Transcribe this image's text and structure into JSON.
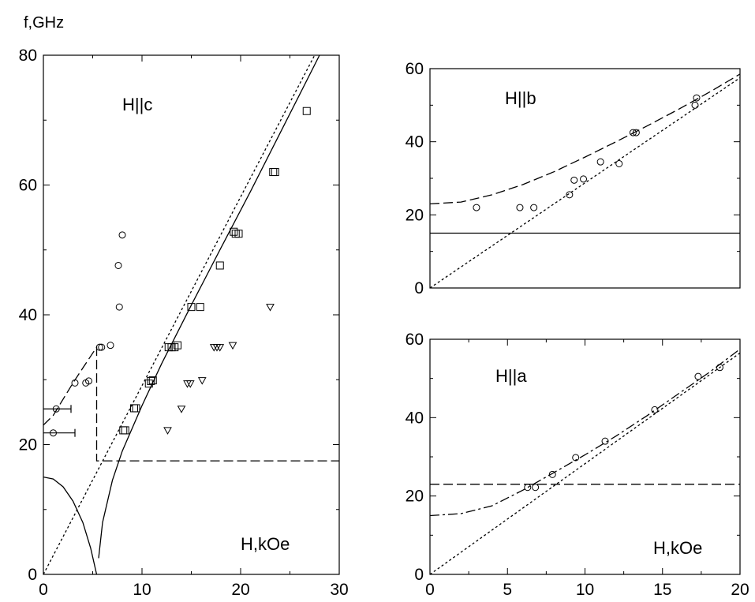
{
  "chart_data": [
    {
      "type": "scatter",
      "ylabel": "f,GHz",
      "xlabel": "H,kOe",
      "annotation": "H||c",
      "xlim": [
        0,
        30
      ],
      "ylim": [
        0,
        80
      ],
      "xticks": [
        0,
        10,
        20,
        30
      ],
      "yticks": [
        0,
        20,
        40,
        60,
        80
      ],
      "series": [
        {
          "marker": "circle",
          "points": [
            [
              1.3,
              25.5
            ],
            [
              1.0,
              21.8
            ],
            [
              3.2,
              29.5
            ],
            [
              4.3,
              29.5
            ],
            [
              4.6,
              29.8
            ],
            [
              5.7,
              35.0
            ],
            [
              5.9,
              35.0
            ],
            [
              6.8,
              35.3
            ],
            [
              7.6,
              47.6
            ],
            [
              7.7,
              41.2
            ],
            [
              8.0,
              52.3
            ]
          ]
        },
        {
          "marker": "square",
          "points": [
            [
              8.1,
              22.2
            ],
            [
              8.3,
              22.2
            ],
            [
              9.2,
              25.6
            ],
            [
              9.4,
              25.6
            ],
            [
              10.7,
              29.4
            ],
            [
              10.9,
              29.8
            ],
            [
              11.1,
              29.9
            ],
            [
              12.7,
              35.0
            ],
            [
              13.0,
              35.0
            ],
            [
              13.3,
              35.0
            ],
            [
              13.6,
              35.3
            ],
            [
              15.0,
              41.2
            ],
            [
              15.9,
              41.2
            ],
            [
              17.9,
              47.6
            ],
            [
              19.3,
              52.8
            ],
            [
              19.5,
              52.5
            ],
            [
              19.8,
              52.5
            ],
            [
              23.3,
              62.0
            ],
            [
              23.5,
              62.0
            ],
            [
              26.7,
              71.4
            ]
          ]
        },
        {
          "marker": "triangle-down",
          "points": [
            [
              12.6,
              22.2
            ],
            [
              14.0,
              25.5
            ],
            [
              14.6,
              29.4
            ],
            [
              14.9,
              29.4
            ],
            [
              16.1,
              29.9
            ],
            [
              17.3,
              35.0
            ],
            [
              17.6,
              35.0
            ],
            [
              17.9,
              35.0
            ],
            [
              19.2,
              35.3
            ],
            [
              23.0,
              41.2
            ]
          ]
        }
      ],
      "curves": [
        {
          "style": "solid",
          "points": [
            [
              0,
              15.0
            ],
            [
              1,
              14.7
            ],
            [
              2,
              13.5
            ],
            [
              3,
              11.3
            ],
            [
              4,
              8.0
            ],
            [
              4.8,
              4.0
            ],
            [
              5.4,
              0
            ]
          ]
        },
        {
          "style": "solid",
          "points": [
            [
              5.6,
              2.5
            ],
            [
              6.0,
              8.0
            ],
            [
              7.0,
              14.5
            ],
            [
              8.0,
              19.0
            ],
            [
              10.0,
              26.0
            ],
            [
              12.0,
              32.5
            ],
            [
              15.0,
              41.5
            ],
            [
              18.0,
              50.3
            ],
            [
              21.0,
              59.0
            ],
            [
              24.0,
              68.0
            ],
            [
              26.0,
              74.0
            ],
            [
              28.0,
              80.0
            ]
          ]
        },
        {
          "style": "dotted",
          "points": [
            [
              0,
              0
            ],
            [
              27.5,
              80.0
            ]
          ]
        },
        {
          "style": "dashed",
          "points": [
            [
              0,
              23.0
            ],
            [
              1,
              24.5
            ],
            [
              2,
              27.0
            ],
            [
              3,
              29.5
            ],
            [
              4,
              31.8
            ],
            [
              5.4,
              35.0
            ],
            [
              5.4,
              17.5
            ],
            [
              30,
              17.5
            ]
          ]
        }
      ],
      "error_bars": [
        {
          "y": 25.5,
          "x_from": 0,
          "x_to": 2.8
        },
        {
          "y": 21.8,
          "x_from": 0,
          "x_to": 3.2
        }
      ]
    },
    {
      "type": "scatter",
      "annotation": "H||b",
      "xlim": [
        0,
        20
      ],
      "ylim": [
        0,
        60
      ],
      "yticks": [
        0,
        20,
        40,
        60
      ],
      "series": [
        {
          "marker": "circle",
          "points": [
            [
              3.0,
              22.0
            ],
            [
              5.8,
              22.0
            ],
            [
              6.7,
              22.0
            ],
            [
              9.0,
              25.5
            ],
            [
              9.3,
              29.5
            ],
            [
              9.9,
              29.8
            ],
            [
              11.0,
              34.5
            ],
            [
              12.2,
              34.0
            ],
            [
              13.1,
              42.5
            ],
            [
              13.3,
              42.5
            ],
            [
              17.1,
              50.0
            ],
            [
              17.2,
              52.0
            ]
          ]
        }
      ],
      "curves": [
        {
          "style": "solid",
          "points": [
            [
              0,
              15.0
            ],
            [
              20,
              15.0
            ]
          ]
        },
        {
          "style": "dotted",
          "points": [
            [
              0,
              0
            ],
            [
              20,
              57.5
            ]
          ]
        },
        {
          "style": "dashed",
          "points": [
            [
              0,
              23.0
            ],
            [
              2,
              23.5
            ],
            [
              4,
              25.5
            ],
            [
              6,
              28.3
            ],
            [
              8,
              31.8
            ],
            [
              10,
              35.8
            ],
            [
              12,
              40.0
            ],
            [
              14,
              44.3
            ],
            [
              16,
              48.8
            ],
            [
              18,
              53.5
            ],
            [
              20,
              58.5
            ]
          ]
        }
      ]
    },
    {
      "type": "scatter",
      "annotation": "H||a",
      "xlabel": "H,kOe",
      "xlim": [
        0,
        20
      ],
      "ylim": [
        0,
        60
      ],
      "xticks": [
        0,
        5,
        10,
        15,
        20
      ],
      "yticks": [
        0,
        20,
        40,
        60
      ],
      "series": [
        {
          "marker": "circle",
          "points": [
            [
              6.3,
              22.2
            ],
            [
              6.8,
              22.2
            ],
            [
              7.9,
              25.5
            ],
            [
              9.4,
              29.8
            ],
            [
              11.3,
              34.0
            ],
            [
              14.5,
              42.0
            ],
            [
              17.3,
              50.5
            ],
            [
              18.7,
              52.8
            ]
          ]
        }
      ],
      "curves": [
        {
          "style": "dashed",
          "points": [
            [
              0,
              23.0
            ],
            [
              20,
              23.0
            ]
          ]
        },
        {
          "style": "dotted",
          "points": [
            [
              0,
              0
            ],
            [
              20,
              56.5
            ]
          ]
        },
        {
          "style": "dashdot",
          "points": [
            [
              0,
              15.0
            ],
            [
              2,
              15.5
            ],
            [
              4,
              17.5
            ],
            [
              6,
              21.5
            ],
            [
              8,
              26.0
            ],
            [
              10,
              30.5
            ],
            [
              12,
              35.3
            ],
            [
              14,
              40.5
            ],
            [
              16,
              46.0
            ],
            [
              18,
              51.5
            ],
            [
              20,
              57.5
            ]
          ]
        }
      ]
    }
  ]
}
